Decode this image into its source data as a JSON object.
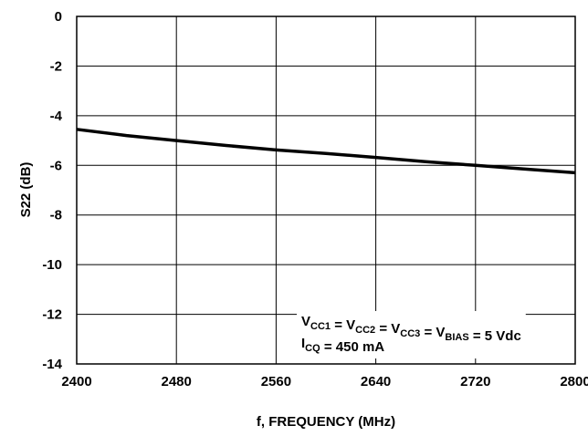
{
  "chart_data": {
    "type": "line",
    "xlabel": "f, FREQUENCY (MHz)",
    "ylabel": "S22 (dB)",
    "xlim": [
      2400,
      2800
    ],
    "ylim": [
      -14,
      0
    ],
    "x_ticks": [
      "2400",
      "2480",
      "2560",
      "2640",
      "2720",
      "2800"
    ],
    "y_ticks": [
      "0",
      "-2",
      "-4",
      "-6",
      "-8",
      "-10",
      "-12",
      "-14"
    ],
    "grid": true,
    "series": [
      {
        "x": [
          2400,
          2440,
          2480,
          2520,
          2560,
          2600,
          2640,
          2680,
          2720,
          2760,
          2800
        ],
        "y": [
          -4.55,
          -4.8,
          -5.0,
          -5.2,
          -5.38,
          -5.52,
          -5.68,
          -5.85,
          -6.0,
          -6.15,
          -6.3
        ]
      }
    ],
    "annotation": {
      "line1": [
        {
          "t": "V"
        },
        {
          "t": "CC1",
          "sub": true
        },
        {
          "t": " = V"
        },
        {
          "t": "CC2",
          "sub": true
        },
        {
          "t": " = V"
        },
        {
          "t": "CC3",
          "sub": true
        },
        {
          "t": " = V"
        },
        {
          "t": "BIAS",
          "sub": true
        },
        {
          "t": " = 5 Vdc"
        }
      ],
      "line2": [
        {
          "t": "I"
        },
        {
          "t": "CQ",
          "sub": true
        },
        {
          "t": " = 450 mA"
        }
      ]
    }
  }
}
